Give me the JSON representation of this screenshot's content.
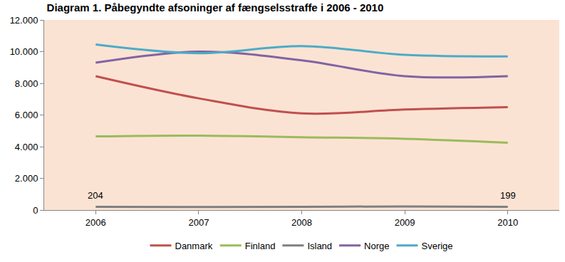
{
  "chart_data": {
    "type": "line",
    "title": "Diagram 1. Påbegyndte afsoninger af fængselsstraffe i 2006 - 2010",
    "categories": [
      "2006",
      "2007",
      "2008",
      "2009",
      "2010"
    ],
    "series": [
      {
        "name": "Danmark",
        "color": "#C0504D",
        "line_style": "smooth",
        "values": [
          8450,
          7050,
          6100,
          6350,
          6500
        ]
      },
      {
        "name": "Finland",
        "color": "#9BBB59",
        "line_style": "smooth",
        "values": [
          4650,
          4700,
          4600,
          4500,
          4250
        ]
      },
      {
        "name": "Island",
        "color": "#7F7F7F",
        "line_style": "smooth",
        "values": [
          204,
          190,
          200,
          230,
          199
        ]
      },
      {
        "name": "Norge",
        "color": "#8064A2",
        "line_style": "smooth",
        "values": [
          9300,
          10000,
          9450,
          8450,
          8450
        ]
      },
      {
        "name": "Sverige",
        "color": "#4BACC6",
        "line_style": "smooth",
        "values": [
          10450,
          9900,
          10350,
          9800,
          9700
        ]
      }
    ],
    "annotations": [
      {
        "x": "2006",
        "y": 204,
        "text": "204"
      },
      {
        "x": "2010",
        "y": 199,
        "text": "199"
      }
    ],
    "ylim": [
      0,
      12000
    ],
    "yticks": [
      0,
      {
        "value": 2000,
        "label": "2.000"
      },
      {
        "value": 4000,
        "label": "4.000"
      },
      {
        "value": 6000,
        "label": "6.000"
      },
      {
        "value": 8000,
        "label": "8.000"
      },
      {
        "value": 10000,
        "label": "10.000"
      },
      {
        "value": 12000,
        "label": "12.000"
      }
    ],
    "grid": false,
    "legend": "bottom"
  }
}
